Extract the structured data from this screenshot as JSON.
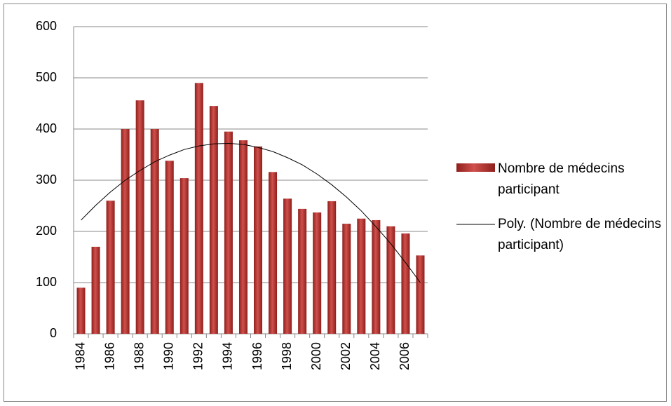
{
  "chart_data": {
    "type": "bar",
    "categories": [
      1984,
      null,
      1986,
      null,
      1988,
      null,
      1990,
      null,
      1992,
      null,
      1994,
      null,
      1996,
      null,
      1998,
      null,
      2000,
      null,
      2002,
      null,
      2004,
      null,
      2006,
      null
    ],
    "series": [
      {
        "name": "Nombre de médecins participant",
        "type": "bar",
        "color": "#b3302d",
        "values": [
          90,
          170,
          260,
          400,
          456,
          400,
          338,
          304,
          490,
          445,
          395,
          378,
          366,
          316,
          264,
          244,
          237,
          259,
          215,
          225,
          222,
          210,
          196,
          153
        ]
      },
      {
        "name": "Poly. (Nombre de médecins participant)",
        "type": "line",
        "color": "#000000",
        "values": [
          222,
          251,
          277,
          300,
          319,
          336,
          349,
          360,
          367,
          371,
          372,
          370,
          364,
          356,
          344,
          330,
          312,
          291,
          267,
          240,
          209,
          176,
          139,
          100
        ]
      }
    ],
    "ylim": [
      0,
      600
    ],
    "yticks": [
      0,
      100,
      200,
      300,
      400,
      500,
      600
    ],
    "grid": true,
    "legend": "right"
  }
}
